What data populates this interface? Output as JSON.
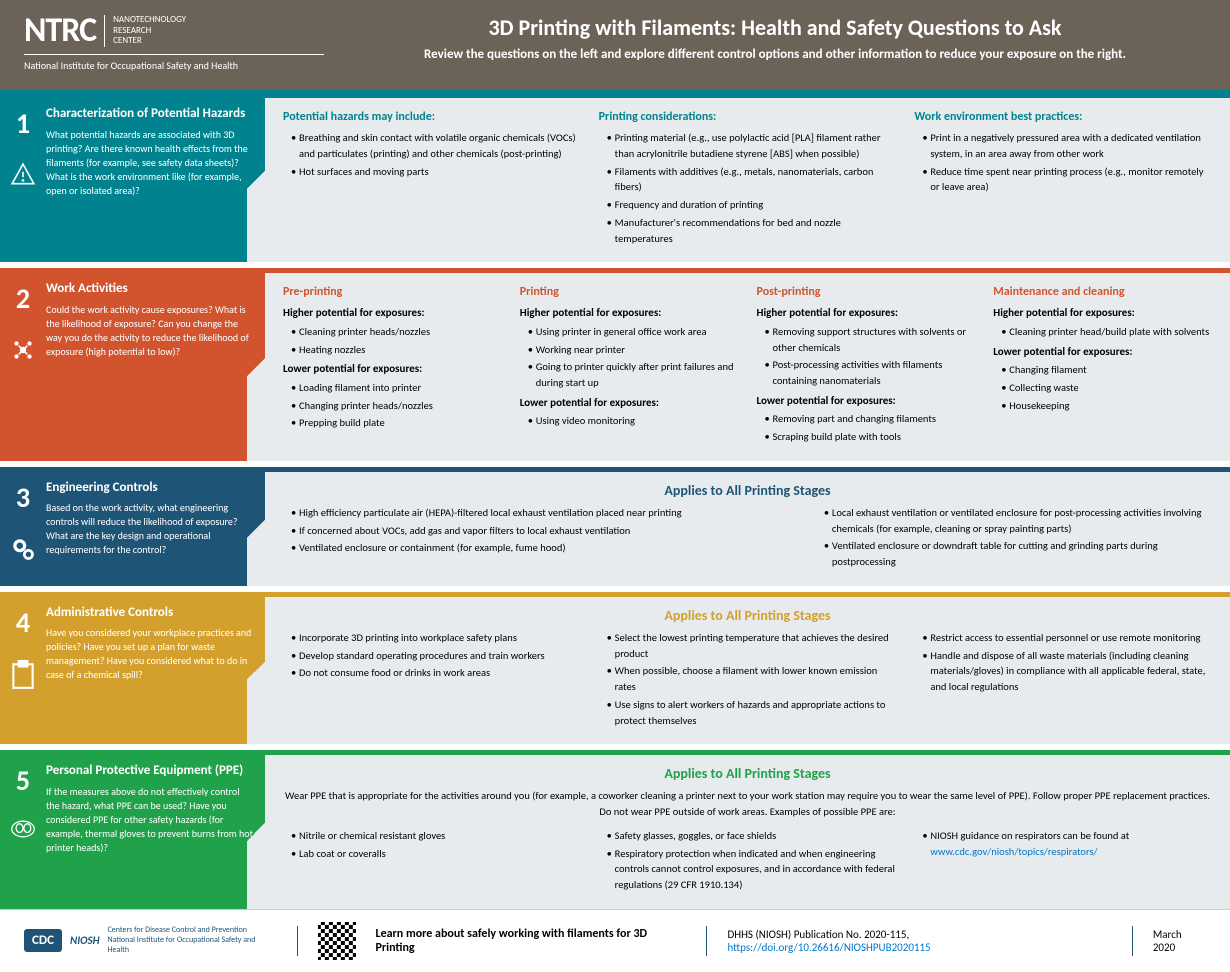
{
  "logo": {
    "main": "NTRC",
    "sub": "NANOTECHNOLOGY\nRESEARCH\nCENTER",
    "tag": "National Institute for Occupational Safety and Health"
  },
  "title": "3D Printing with Filaments: Health and Safety Questions to Ask",
  "subtitle": "Review the questions on the left and explore different control options and other information to reduce your exposure on the right.",
  "sections": [
    {
      "num": "1",
      "title": "Characterization of Potential Hazards",
      "q": "What potential hazards are associated with 3D printing? Are there known health effects from the filaments (for example, see safety data sheets)? What is the work environment like (for example, open or isolated area)?",
      "cols": [
        {
          "h": "Potential hazards may include:",
          "items": [
            "Breathing and skin contact with volatile organic chemicals (VOCs) and particulates (printing) and other chemicals (post-printing)",
            "Hot surfaces and moving parts"
          ]
        },
        {
          "h": "Printing considerations:",
          "items": [
            "Printing material (e.g., use polylactic acid [PLA] filament rather than acrylonitrile butadiene styrene [ABS] when possible)",
            "Filaments with additives (e.g., metals, nanomaterials, carbon fibers)",
            "Frequency and duration of printing",
            "Manufacturer's recommendations for bed and nozzle temperatures"
          ]
        },
        {
          "h": "Work environment best practices:",
          "items": [
            "Print in a negatively pressured area with a dedicated ventilation system, in an area away from other work",
            "Reduce time spent near printing process (e.g., monitor remotely or leave area)"
          ]
        }
      ]
    },
    {
      "num": "2",
      "title": "Work Activities",
      "q": "Could the work activity cause exposures? What is the likelihood of exposure? Can you change the way you do the activity to reduce the likelihood of exposure (high potential to low)?",
      "cols": [
        {
          "h": "Pre-printing",
          "groups": [
            {
              "sh": "Higher potential for exposures:",
              "items": [
                "Cleaning printer heads/nozzles",
                "Heating nozzles"
              ]
            },
            {
              "sh": "Lower potential for exposures:",
              "items": [
                "Loading filament into printer",
                "Changing printer heads/nozzles",
                "Prepping build plate"
              ]
            }
          ]
        },
        {
          "h": "Printing",
          "groups": [
            {
              "sh": "Higher potential for exposures:",
              "items": [
                "Using printer in general office work area",
                "Working near printer",
                "Going to printer quickly after print failures and during start up"
              ]
            },
            {
              "sh": "Lower potential for exposures:",
              "items": [
                "Using video monitoring"
              ]
            }
          ]
        },
        {
          "h": "Post-printing",
          "groups": [
            {
              "sh": "Higher potential for exposures:",
              "items": [
                "Removing support structures with solvents or other chemicals",
                "Post-processing activities with filaments containing nanomaterials"
              ]
            },
            {
              "sh": "Lower potential for exposures:",
              "items": [
                "Removing part and changing filaments",
                "Scraping build plate with tools"
              ]
            }
          ]
        },
        {
          "h": "Maintenance and cleaning",
          "groups": [
            {
              "sh": "Higher potential for exposures:",
              "items": [
                "Cleaning printer head/build plate with solvents"
              ]
            },
            {
              "sh": "Lower potential for exposures:",
              "items": [
                "Changing filament",
                "Collecting waste",
                "Housekeeping"
              ]
            }
          ]
        }
      ]
    },
    {
      "num": "3",
      "title": "Engineering Controls",
      "q": "Based on the work activity, what engineering controls will reduce the likelihood of exposure? What are the key design and operational requirements for the control?",
      "stage": "Applies to All Printing Stages",
      "plain": [
        [
          "High efficiency particulate air (HEPA)-filtered local exhaust ventilation placed near printing",
          "If concerned about VOCs, add gas and vapor filters to local exhaust ventilation",
          "Ventilated enclosure or containment (for example, fume hood)"
        ],
        [
          "Local exhaust ventilation or ventilated enclosure for post-processing activities involving chemicals (for example, cleaning or spray painting parts)",
          "Ventilated enclosure or downdraft table for cutting and grinding parts during postprocessing"
        ]
      ]
    },
    {
      "num": "4",
      "title": "Administrative Controls",
      "q": "Have you considered your workplace practices and policies? Have you set up a plan for waste management? Have you considered what to do in case of a chemical spill?",
      "stage": "Applies to All Printing Stages",
      "plain": [
        [
          "Incorporate 3D printing into workplace safety plans",
          "Develop standard operating procedures and train workers",
          "Do not consume food or drinks in work areas"
        ],
        [
          "Select the lowest printing temperature that achieves the desired product",
          "When possible, choose a filament with lower known emission rates",
          "Use signs to alert workers of hazards and appropriate actions to protect themselves"
        ],
        [
          "Restrict access to essential personnel or use remote monitoring",
          "Handle and dispose of all waste materials (including cleaning materials/gloves) in compliance with all applicable federal, state, and local regulations"
        ]
      ]
    },
    {
      "num": "5",
      "title": "Personal Protective Equipment (PPE)",
      "q": "If the measures above do not effectively control the hazard, what PPE can be used? Have you considered PPE for other safety hazards (for example, thermal gloves to prevent burns from hot printer heads)?",
      "stage": "Applies to All Printing Stages",
      "intro": "Wear PPE that is appropriate for the activities around you (for example, a coworker cleaning a printer next to your work station may require you to wear the same level of PPE). Follow proper PPE replacement practices. Do not wear PPE outside of work areas. Examples of possible PPE are:",
      "plain": [
        [
          "Nitrile or chemical resistant gloves",
          "Lab coat or coveralls"
        ],
        [
          "Safety glasses, goggles, or face shields",
          "Respiratory protection when indicated and when engineering controls cannot control exposures, and in accordance with federal regulations (29 CFR 1910.134)"
        ],
        [
          "NIOSH guidance on respirators can be found at www.cdc.gov/niosh/topics/respirators/"
        ]
      ]
    }
  ],
  "footer": {
    "org": "Centers for Disease Control and Prevention\nNational Institute for Occupational Safety and Health",
    "learn": "Learn more about safely working with filaments for 3D Printing",
    "pub": "DHHS (NIOSH) Publication No. 2020-115, ",
    "doi": "https://doi.org/10.26616/NIOSHPUB2020115",
    "date": "March 2020"
  },
  "icons": [
    "⚠",
    "⚙",
    "⚙⚙",
    "📋",
    "🥽"
  ]
}
